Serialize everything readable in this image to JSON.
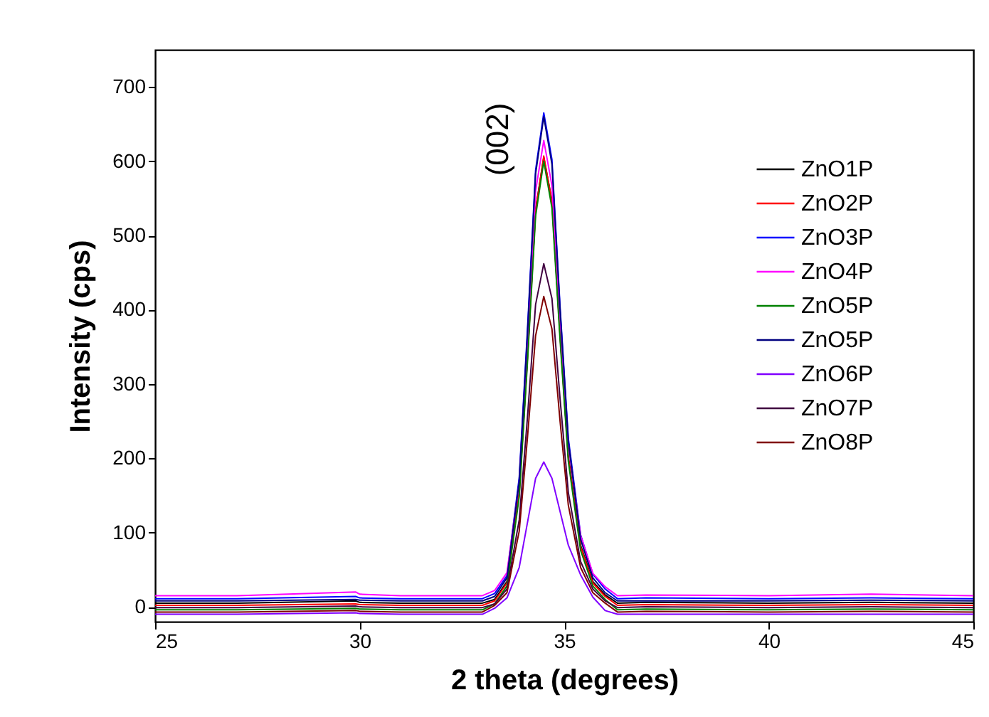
{
  "chart_data": {
    "type": "line",
    "xlabel": "2 theta (degrees)",
    "ylabel": "Intensity (cps)",
    "x": [
      25,
      27,
      29.9,
      30,
      31,
      33,
      33.3,
      33.6,
      33.9,
      34.1,
      34.3,
      34.5,
      34.7,
      34.9,
      35.1,
      35.4,
      35.7,
      36,
      36.3,
      37,
      40,
      42.5,
      45
    ],
    "series": [
      {
        "name": "ZnO1P",
        "color": "#000000",
        "values": [
          5,
          5,
          8,
          6,
          5,
          5,
          10,
          34,
          155,
          336,
          535,
          605,
          547,
          366,
          203,
          83,
          34,
          16,
          5,
          6,
          5,
          6,
          5
        ]
      },
      {
        "name": "ZnO2P",
        "color": "#ff0000",
        "values": [
          2,
          2,
          4,
          3,
          2,
          2,
          8,
          32,
          153,
          334,
          533,
          607,
          545,
          364,
          201,
          81,
          32,
          14,
          2,
          3,
          2,
          3,
          2
        ]
      },
      {
        "name": "ZnO3P",
        "color": "#0000ff",
        "values": [
          11,
          11,
          14,
          12,
          11,
          11,
          18,
          42,
          174,
          372,
          588,
          665,
          602,
          402,
          227,
          97,
          44,
          24,
          11,
          12,
          11,
          12,
          11
        ]
      },
      {
        "name": "ZnO4P",
        "color": "#ff00ff",
        "values": [
          15,
          15,
          20,
          17,
          15,
          15,
          22,
          46,
          167,
          354,
          560,
          628,
          567,
          383,
          218,
          96,
          45,
          27,
          15,
          16,
          15,
          17,
          15
        ]
      },
      {
        "name": "ZnO5P",
        "color": "#008000",
        "values": [
          -4,
          -4,
          -2,
          -3,
          -4,
          -4,
          4,
          28,
          148,
          328,
          526,
          600,
          537,
          358,
          196,
          76,
          28,
          10,
          -4,
          -3,
          -4,
          -3,
          -4
        ]
      },
      {
        "name": "ZnO5P",
        "color": "#000080",
        "values": [
          8,
          8,
          10,
          9,
          8,
          8,
          14,
          39,
          169,
          366,
          583,
          660,
          596,
          398,
          223,
          91,
          39,
          19,
          8,
          8,
          8,
          9,
          8
        ]
      },
      {
        "name": "ZnO6P",
        "color": "#8000ff",
        "values": [
          -10,
          -10,
          -8,
          -9,
          -10,
          -10,
          -2,
          12,
          53,
          113,
          173,
          195,
          173,
          128,
          83,
          43,
          13,
          -5,
          -10,
          -10,
          -10,
          -10,
          -10
        ]
      },
      {
        "name": "ZnO7P",
        "color": "#400040",
        "values": [
          -1,
          -1,
          1,
          0,
          -1,
          -1,
          4,
          24,
          117,
          254,
          407,
          462,
          415,
          279,
          154,
          61,
          24,
          8,
          -1,
          0,
          -1,
          0,
          -1
        ]
      },
      {
        "name": "ZnO8P",
        "color": "#800000",
        "values": [
          -7,
          -7,
          -5,
          -6,
          -7,
          -7,
          2,
          19,
          102,
          227,
          365,
          418,
          374,
          249,
          137,
          53,
          19,
          5,
          -7,
          -6,
          -7,
          -6,
          -7
        ]
      }
    ],
    "xlim": [
      25,
      45
    ],
    "xticks": [
      25,
      30,
      35,
      40,
      45
    ],
    "ylim": [
      -20,
      750
    ],
    "yticks": [
      0,
      100,
      200,
      300,
      400,
      500,
      600,
      700
    ],
    "annotations": [
      "(002)"
    ],
    "grid": false,
    "legend": "top right",
    "marker": "none",
    "line_style": "solid"
  }
}
